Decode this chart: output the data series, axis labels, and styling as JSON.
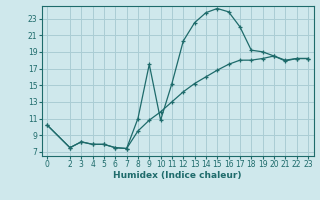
{
  "xlabel": "Humidex (Indice chaleur)",
  "bg_color": "#cfe8ec",
  "grid_color": "#aacdd4",
  "line_color": "#1e6b6b",
  "xlim": [
    -0.5,
    23.5
  ],
  "ylim": [
    6.5,
    24.5
  ],
  "yticks": [
    7,
    9,
    11,
    13,
    15,
    17,
    19,
    21,
    23
  ],
  "xticks": [
    0,
    2,
    3,
    4,
    5,
    6,
    7,
    8,
    9,
    10,
    11,
    12,
    13,
    14,
    15,
    16,
    17,
    18,
    19,
    20,
    21,
    22,
    23
  ],
  "curve1_x": [
    0,
    2,
    3,
    4,
    5,
    6,
    7,
    8,
    9,
    10,
    11,
    12,
    13,
    14,
    15,
    16,
    17,
    18,
    19,
    20,
    21,
    22,
    23
  ],
  "curve1_y": [
    10.2,
    7.5,
    8.2,
    7.9,
    7.9,
    7.5,
    7.4,
    11.0,
    17.5,
    10.8,
    15.2,
    20.3,
    22.5,
    23.7,
    24.2,
    23.8,
    22.0,
    19.2,
    19.0,
    18.5,
    18.0,
    18.2,
    18.2
  ],
  "curve2_x": [
    0,
    2,
    3,
    4,
    5,
    6,
    7,
    8,
    9,
    10,
    11,
    12,
    13,
    14,
    15,
    16,
    17,
    18,
    19,
    20,
    21,
    22,
    23
  ],
  "curve2_y": [
    10.2,
    7.5,
    8.2,
    7.9,
    7.9,
    7.5,
    7.4,
    9.5,
    10.8,
    11.8,
    13.0,
    14.2,
    15.2,
    16.0,
    16.8,
    17.5,
    18.0,
    18.0,
    18.2,
    18.5,
    17.9,
    18.2,
    18.2
  ]
}
